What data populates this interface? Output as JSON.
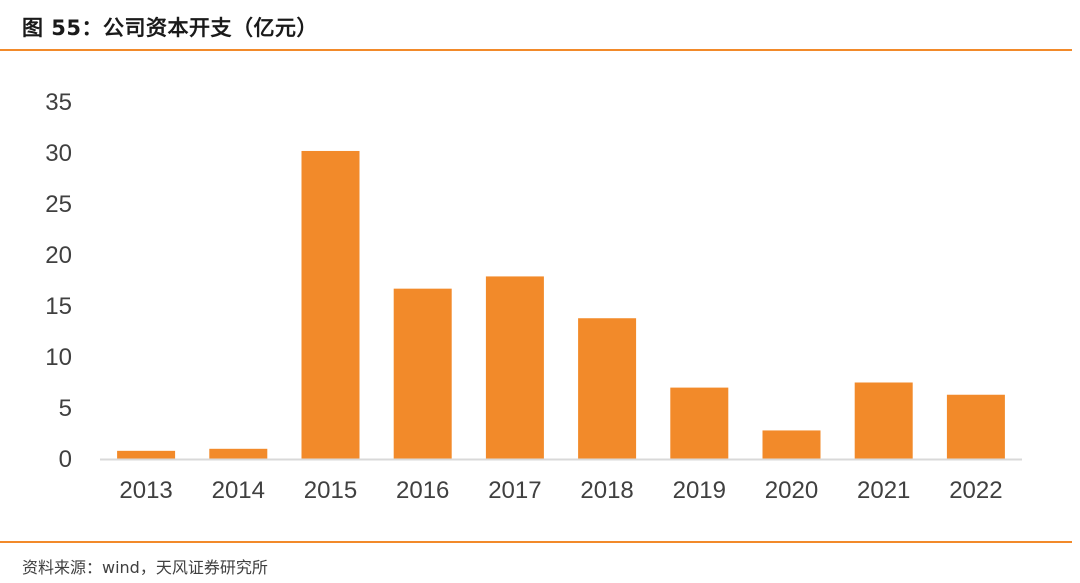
{
  "header": {
    "title": "图 55：公司资本开支（亿元）"
  },
  "footer": {
    "source": "资料来源：wind，天风证券研究所"
  },
  "colors": {
    "accent": "#f28a2a",
    "bar": "#f28a2a",
    "axis": "#d9d9d9",
    "text": "#404040"
  },
  "chart_data": {
    "type": "bar",
    "title": "",
    "xlabel": "",
    "ylabel": "",
    "categories": [
      "2013",
      "2014",
      "2015",
      "2016",
      "2017",
      "2018",
      "2019",
      "2020",
      "2021",
      "2022"
    ],
    "values": [
      0.8,
      1.0,
      30.2,
      16.7,
      17.9,
      13.8,
      7.0,
      2.8,
      7.5,
      6.3
    ],
    "ylim": [
      0,
      35
    ],
    "yticks": [
      0,
      5,
      10,
      15,
      20,
      25,
      30,
      35
    ],
    "grid": false,
    "legend": "none"
  }
}
